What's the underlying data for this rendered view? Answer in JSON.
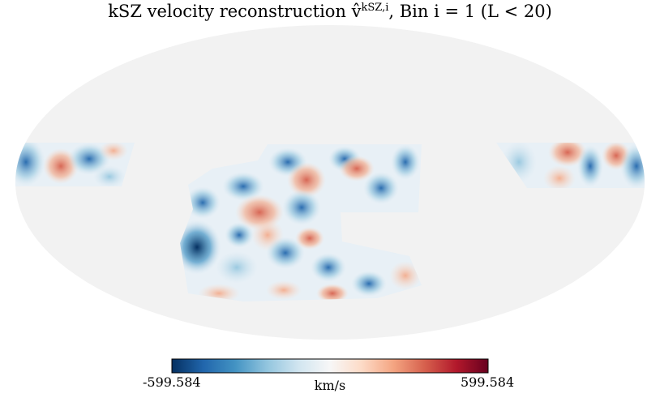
{
  "title": {
    "prefix": "kSZ velocity reconstruction ",
    "symbol": "v̂",
    "superscript": "kSZ,i",
    "suffix": ", Bin i = 1 (L < 20)"
  },
  "colorbar": {
    "min_label": "-599.584",
    "max_label": "599.584",
    "unit": "km/s",
    "colormap": [
      "#053061",
      "#2166ac",
      "#4393c3",
      "#92c5de",
      "#d1e5f0",
      "#f7f7f7",
      "#fddbc7",
      "#f4a582",
      "#d6604d",
      "#b2182b",
      "#67001f"
    ]
  },
  "map": {
    "projection": "mollweide",
    "background_color": "#f2f2f2"
  }
}
